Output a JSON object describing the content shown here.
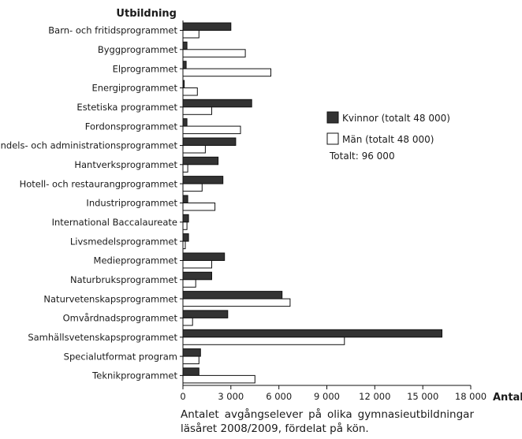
{
  "chart_data": {
    "type": "bar",
    "orientation": "horizontal",
    "title": "",
    "ylabel": "Utbildning",
    "xlabel": "Antal",
    "xlim": [
      0,
      18000
    ],
    "xticks": [
      0,
      3000,
      6000,
      9000,
      12000,
      15000,
      18000
    ],
    "xtick_labels": [
      "0",
      "3 000",
      "6 000",
      "9 000",
      "12 000",
      "15 000",
      "18 000"
    ],
    "grid": false,
    "legend_position": "right",
    "categories": [
      "Barn- och fritidsprogrammet",
      "Byggprogrammet",
      "Elprogrammet",
      "Energiprogrammet",
      "Estetiska programmet",
      "Fordonsprogrammet",
      "Handels- och administrationsprogrammet",
      "Hantverksprogrammet",
      "Hotell- och restaurangprogrammet",
      "Industriprogrammet",
      "International Baccalaureate",
      "Livsmedelsprogrammet",
      "Medieprogrammet",
      "Naturbruksprogrammet",
      "Naturvetenskapsprogrammet",
      "Omvårdnadsprogrammet",
      "Samhällsvetenskapsprogrammet",
      "Specialutformat program",
      "Teknikprogrammet"
    ],
    "series": [
      {
        "name": "Kvinnor (totalt 48 000)",
        "color": "#333333",
        "values": [
          3000,
          250,
          200,
          80,
          4300,
          250,
          3300,
          2200,
          2500,
          300,
          350,
          350,
          2600,
          1800,
          6200,
          2800,
          16200,
          1100,
          1000
        ]
      },
      {
        "name": "Män (totalt 48 000)",
        "color": "#ffffff",
        "values": [
          1000,
          3900,
          5500,
          900,
          1800,
          3600,
          1400,
          300,
          1200,
          2000,
          250,
          150,
          1800,
          800,
          6700,
          600,
          10100,
          1000,
          4500
        ]
      }
    ],
    "legend_note": "Totalt: 96 000"
  },
  "caption": "Antalet avgångselever på olika gymnasieutbildningar läsåret 2008/2009, fördelat på kön."
}
